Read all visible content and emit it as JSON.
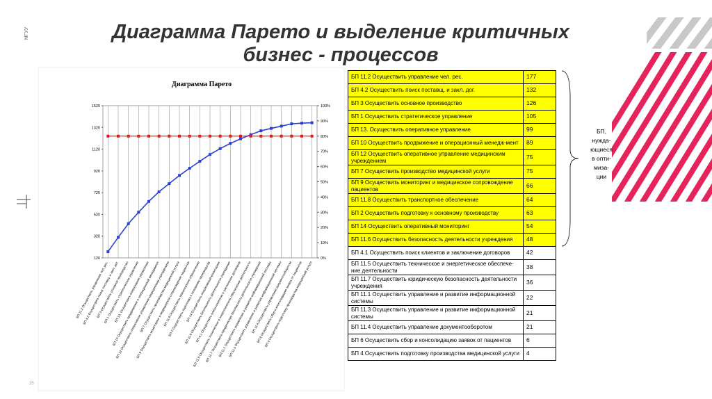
{
  "slide": {
    "title_lines": [
      "Диаграмма Парето и выделение критичных",
      "бизнес - процессов"
    ],
    "side_label": "МГУУ",
    "page_number": "25"
  },
  "chart_data": {
    "type": "line",
    "title": "Диаграмма Парето",
    "categories": [
      "БП 11.2 Осуществить управление чел. рес.",
      "БП 4.2 Осуществить поиск поставщ. и закл. дог.",
      "БП 3 Осуществить основное производство",
      "БП 1 Осуществить стратегическое управление",
      "БП 13. Осуществить оперативное управление",
      "БП 10 Осуществить продвижение и операционный менеджмент",
      "БП 12 Осуществить оперативное управление медицинским учреждением",
      "БП 7 Осуществить производство медицинской услуги",
      "БП 9 Осуществить мониторинг и медицинское сопровождение пациентов",
      "БП 11.8 Осуществить транспортное обеспечение",
      "БП 2 Осуществить подготовку к основному производству",
      "БП 14 Осуществить оперативный мониторинг",
      "БП 11.6 Осуществить безопасность деятельности учреждения",
      "БП 4.1 Осуществить поиск клиентов и заключение договоров",
      "БП 11.5 Осуществить техническое и энергетическое обеспечение деятельности",
      "БП 11.7 Осуществить юридическую безопасность деятельности учреждения",
      "БП 11.1 Осуществить управление и развитие информационной системы",
      "БП 11.3 Осуществить управление и развитие информационной системы",
      "БП 11.4 Осуществить управление документооборотом",
      "БП 6 Осуществить сбор и консолидацию заявок от пациентов",
      "БП 4 Осуществить подготовку производства медицинской услуги"
    ],
    "series": [
      {
        "color": "#2b3fd6",
        "values": [
          177,
          309,
          435,
          540,
          639,
          728,
          803,
          878,
          944,
          1008,
          1071,
          1125,
          1173,
          1215,
          1253,
          1289,
          1311,
          1332,
          1353,
          1359,
          1363
        ]
      },
      {
        "color": "#e01818",
        "axis": "y2",
        "values": [
          80,
          80,
          80,
          80,
          80,
          80,
          80,
          80,
          80,
          80,
          80,
          80,
          80,
          80,
          80,
          80,
          80,
          80,
          80,
          80,
          80
        ]
      }
    ],
    "ylim": [
      120,
      1520
    ],
    "yticks": [
      120,
      320,
      520,
      720,
      920,
      1120,
      1320,
      1520
    ],
    "y2lim": [
      0,
      100
    ],
    "y2ticks": [
      {
        "value": 0,
        "label": "0%"
      },
      {
        "value": 10,
        "label": "10%"
      },
      {
        "value": 20,
        "label": "20%"
      },
      {
        "value": 30,
        "label": "30%"
      },
      {
        "value": 40,
        "label": "40%"
      },
      {
        "value": 50,
        "label": "50%"
      },
      {
        "value": 60,
        "label": "60%"
      },
      {
        "value": 70,
        "label": "70%"
      },
      {
        "value": 80,
        "label": "80%"
      },
      {
        "value": 90,
        "label": "90%"
      },
      {
        "value": 100,
        "label": "100%"
      }
    ],
    "grid": true
  },
  "table": {
    "highlight_color": "#ffff00",
    "rows": [
      {
        "name": "БП 11.2 Осуществить управление чел. рес.",
        "value": "177",
        "highlight": true
      },
      {
        "name": "БП 4.2 Осуществить поиск поставщ. и закл. дог.",
        "value": "132",
        "highlight": true
      },
      {
        "name": "БП 3 Осуществить основное производство",
        "value": "126",
        "highlight": true
      },
      {
        "name": "БП 1 Осуществить стратегическое управление",
        "value": "105",
        "highlight": true
      },
      {
        "name": "БП 13. Осуществить оперативное управление",
        "value": "99",
        "highlight": true
      },
      {
        "name": "БП 10 Осуществить продвижение и операционный менедж-мент",
        "value": "89",
        "highlight": true
      },
      {
        "name": "БП 12 Осуществить оперативное управление медицинским учреждением",
        "value": "75",
        "highlight": true
      },
      {
        "name": "БП 7 Осуществить производство медицинской услуги",
        "value": "75",
        "highlight": true
      },
      {
        "name": "БП 9 Осуществить мониторинг и медицинское сопровождение пациентов",
        "value": "66",
        "highlight": true
      },
      {
        "name": "БП 11.8 Осуществить транспортное обеспечение",
        "value": "64",
        "highlight": true
      },
      {
        "name": "БП 2 Осуществить подготовку к основному производству",
        "value": "63",
        "highlight": true
      },
      {
        "name": "БП 14 Осуществить оперативный мониторинг",
        "value": "54",
        "highlight": true
      },
      {
        "name": "БП 11.6 Осуществить безопасность деятельности учреждения",
        "value": "48",
        "highlight": true
      },
      {
        "name": "БП 4.1 Осуществить поиск клиентов и заключение договоров",
        "value": "42",
        "highlight": false
      },
      {
        "name": "БП 11.5 Осуществить техническое и энергетическое обеспече-ние деятельности",
        "value": "38",
        "highlight": false
      },
      {
        "name": "БП 11.7 Осуществить юридическую безопасность деятельности учреждения",
        "value": "36",
        "highlight": false
      },
      {
        "name": "БП 11.1 Осуществить управление и развитие информационной системы",
        "value": "22",
        "highlight": false
      },
      {
        "name": "БП 11.3 Осуществить управление и развитие информационной системы",
        "value": "21",
        "highlight": false
      },
      {
        "name": "БП 11.4 Осуществить управление документооборотом",
        "value": "21",
        "highlight": false
      },
      {
        "name": "БП 6 Осуществить сбор и консолидацию заявок от пациентов",
        "value": "6",
        "highlight": false
      },
      {
        "name": "БП 4 Осуществить подготовку производства медицинской услуги",
        "value": "4",
        "highlight": false
      }
    ]
  },
  "brace_note": {
    "lines": [
      "БП,",
      "нужда-",
      "ющиеся",
      "в опти-",
      "миза-",
      "ции"
    ]
  }
}
